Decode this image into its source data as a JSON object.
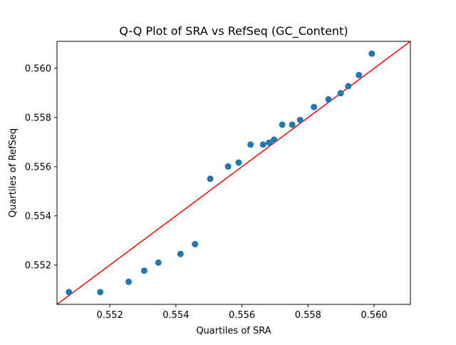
{
  "chart_data": {
    "type": "scatter",
    "title": "Q-Q Plot of SRA vs RefSeq (GC_Content)",
    "xlabel": "Quartiles of SRA",
    "ylabel": "Quartiles of RefSeq",
    "xlim": [
      0.5504,
      0.5611
    ],
    "ylim": [
      0.5504,
      0.5611
    ],
    "xticks": [
      0.552,
      0.554,
      0.556,
      0.558,
      0.56
    ],
    "yticks": [
      0.552,
      0.554,
      0.556,
      0.558,
      0.56
    ],
    "xtick_labels": [
      "0.552",
      "0.554",
      "0.556",
      "0.558",
      "0.560"
    ],
    "ytick_labels": [
      "0.552",
      "0.554",
      "0.556",
      "0.558",
      "0.560"
    ],
    "grid": false,
    "marker_color": "#1f77b4",
    "line_color": "#ff0000",
    "reference_line": {
      "slope": 1,
      "intercept": 0
    },
    "points": [
      {
        "x": 0.55076,
        "y": 0.5509
      },
      {
        "x": 0.55171,
        "y": 0.5509
      },
      {
        "x": 0.55257,
        "y": 0.55132
      },
      {
        "x": 0.55304,
        "y": 0.55177
      },
      {
        "x": 0.55347,
        "y": 0.5521
      },
      {
        "x": 0.55414,
        "y": 0.55245
      },
      {
        "x": 0.55458,
        "y": 0.55285
      },
      {
        "x": 0.55504,
        "y": 0.55551
      },
      {
        "x": 0.55558,
        "y": 0.55601
      },
      {
        "x": 0.5559,
        "y": 0.55617
      },
      {
        "x": 0.55626,
        "y": 0.5569
      },
      {
        "x": 0.55664,
        "y": 0.5569
      },
      {
        "x": 0.55682,
        "y": 0.55698
      },
      {
        "x": 0.55697,
        "y": 0.5571
      },
      {
        "x": 0.55722,
        "y": 0.55771
      },
      {
        "x": 0.55752,
        "y": 0.55771
      },
      {
        "x": 0.55776,
        "y": 0.5579
      },
      {
        "x": 0.55818,
        "y": 0.55843
      },
      {
        "x": 0.55862,
        "y": 0.55874
      },
      {
        "x": 0.55899,
        "y": 0.55899
      },
      {
        "x": 0.55922,
        "y": 0.55928
      },
      {
        "x": 0.55954,
        "y": 0.55973
      },
      {
        "x": 0.55993,
        "y": 0.5606
      }
    ]
  }
}
